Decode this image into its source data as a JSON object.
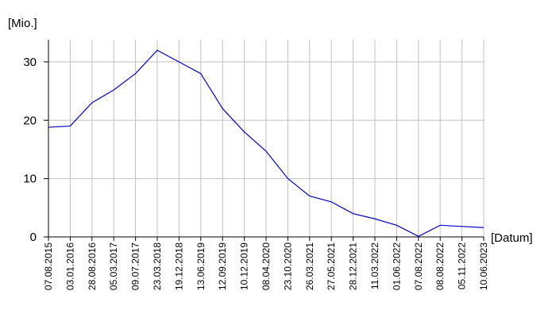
{
  "chart_data": {
    "type": "line",
    "y_label": "[Mio.]",
    "x_label": "[Datum]",
    "categories": [
      "07.08.2015",
      "03.01.2016",
      "28.08.2016",
      "05.03.2017",
      "09.07.2017",
      "23.03.2018",
      "19.12.2018",
      "13.06.2019",
      "12.09.2019",
      "10.12.2019",
      "08.04.2020",
      "23.10.2020",
      "26.03.2021",
      "27.05.2021",
      "28.12.2021",
      "11.03.2022",
      "01.06.2022",
      "07.08.2022",
      "08.08.2022",
      "05.11.2022",
      "10.06.2023"
    ],
    "series": [
      {
        "color": "#0000cc",
        "values": [
          18.8,
          19,
          23,
          25.2,
          28,
          32,
          30,
          28,
          22,
          18,
          14.7,
          10,
          7,
          6,
          4,
          3.1,
          2,
          0.1,
          2,
          1.8,
          1.6
        ]
      }
    ],
    "ylim": [
      0,
      33.8
    ],
    "yticks": [
      0,
      10,
      20,
      30
    ],
    "grid": true
  }
}
